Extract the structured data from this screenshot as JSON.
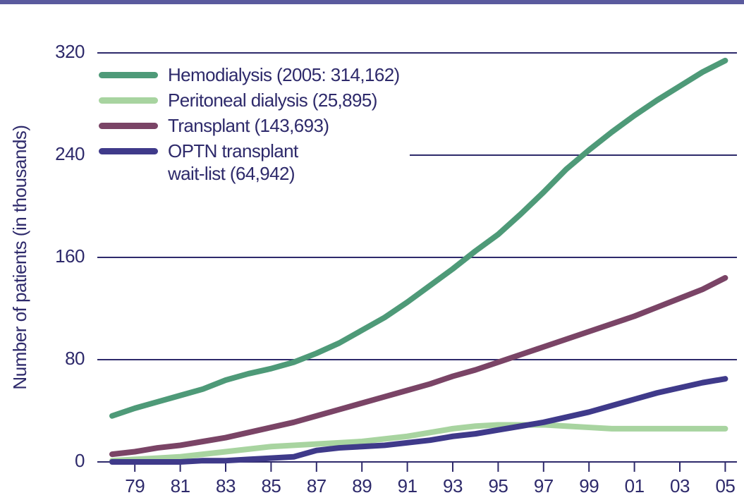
{
  "chart_data": {
    "type": "line",
    "ylabel": "Number of patients (in thousands)",
    "categories": [
      null,
      "79",
      null,
      "81",
      null,
      "83",
      null,
      "85",
      null,
      "87",
      null,
      "89",
      null,
      "91",
      null,
      "93",
      null,
      "95",
      null,
      "97",
      null,
      "99",
      null,
      "01",
      null,
      "03",
      null,
      "05"
    ],
    "ylim": [
      0,
      320
    ],
    "yticks": [
      0,
      80,
      160,
      240,
      320
    ],
    "grid": true,
    "legend": "upper left",
    "series": [
      {
        "name": "Hemodialysis (2005: 314,162)",
        "color": "#4e9a78",
        "values": [
          36,
          42,
          47,
          52,
          57,
          64,
          69,
          73,
          78,
          85,
          93,
          103,
          113,
          125,
          138,
          151,
          165,
          178,
          194,
          211,
          229,
          244,
          258,
          271,
          283,
          294,
          305,
          314
        ]
      },
      {
        "name": "Peritoneal dialysis (25,895)",
        "color": "#a8d4a0",
        "values": [
          1,
          2,
          3,
          4,
          6,
          8,
          10,
          12,
          13,
          14,
          15,
          16,
          18,
          20,
          23,
          26,
          28,
          29,
          29,
          29,
          28,
          27,
          26,
          26,
          26,
          26,
          26,
          26
        ]
      },
      {
        "name": "Transplant (143,693)",
        "color": "#7a4466",
        "values": [
          6,
          8,
          11,
          13,
          16,
          19,
          23,
          27,
          31,
          36,
          41,
          46,
          51,
          56,
          61,
          67,
          72,
          78,
          84,
          90,
          96,
          102,
          108,
          114,
          121,
          128,
          135,
          144
        ]
      },
      {
        "name": "OPTN transplant\nwait-list (64,942)",
        "color": "#3f3a8a",
        "values": [
          0,
          0,
          0,
          0,
          1,
          1,
          2,
          3,
          4,
          9,
          11,
          12,
          13,
          15,
          17,
          20,
          22,
          25,
          28,
          31,
          35,
          39,
          44,
          49,
          54,
          58,
          62,
          65
        ]
      }
    ]
  }
}
